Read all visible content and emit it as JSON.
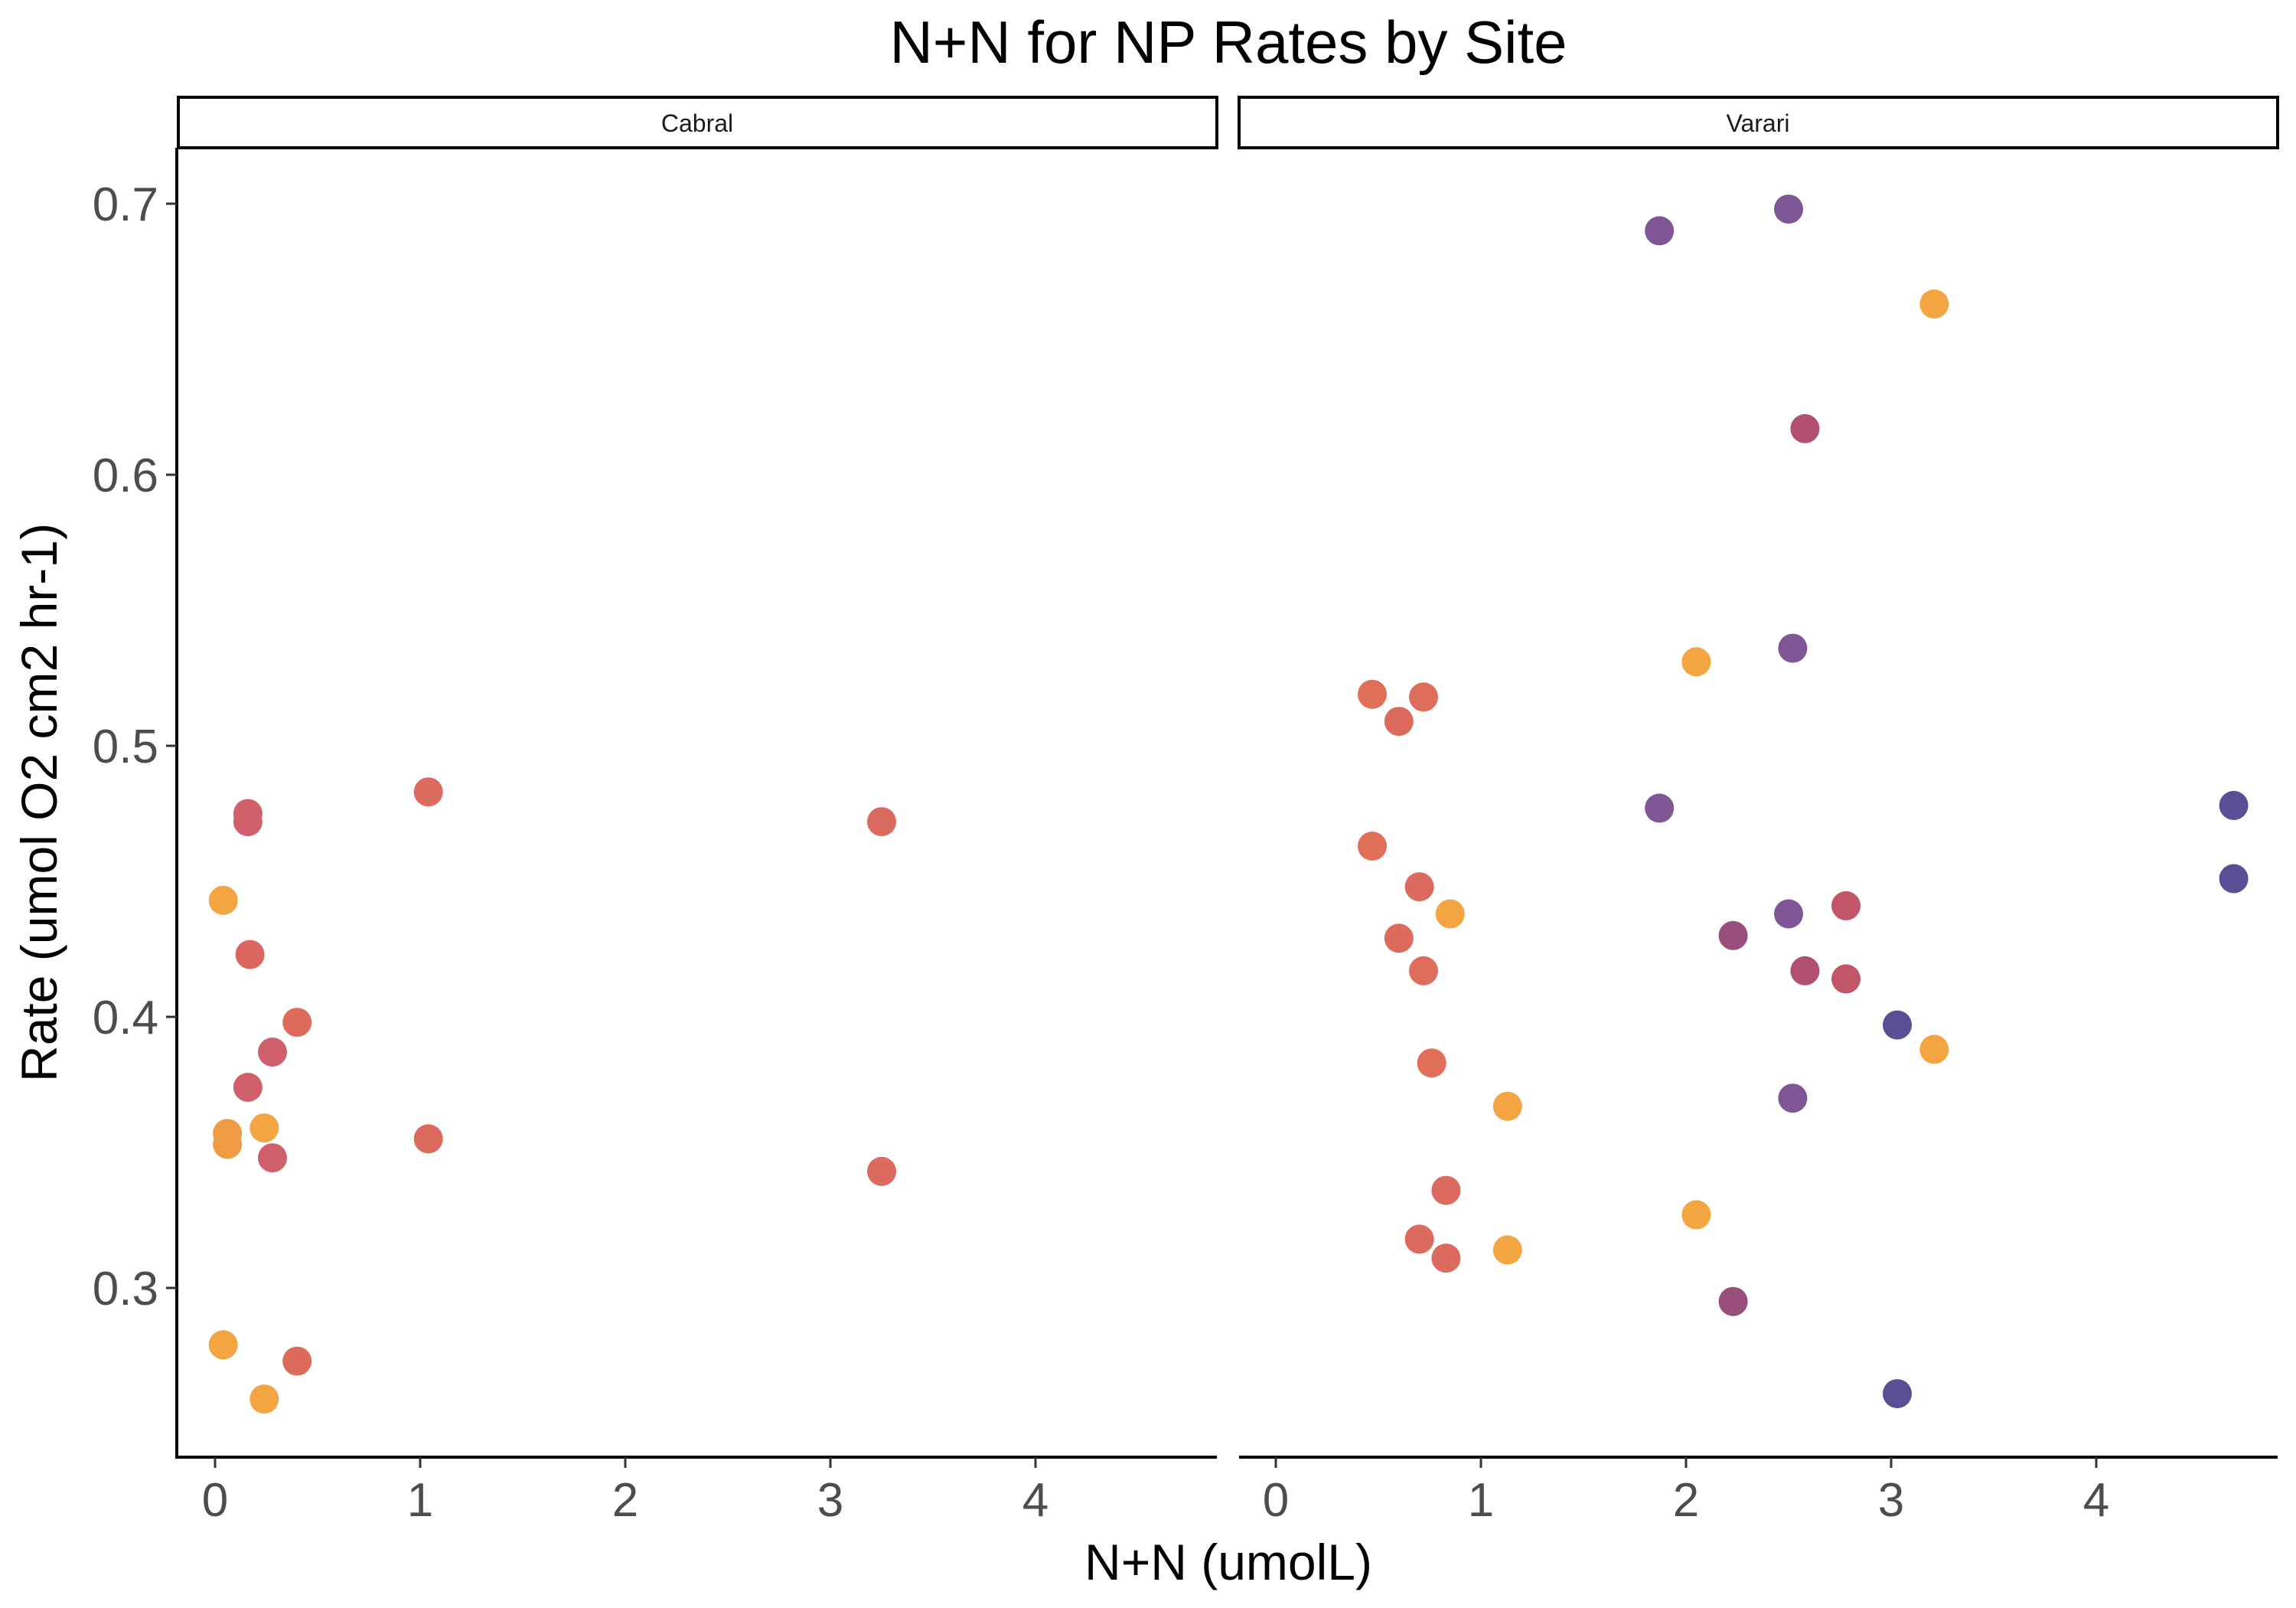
{
  "chart_data": {
    "type": "scatter",
    "title": "N+N for NP Rates by Site",
    "xlabel": "N+N (umolL)",
    "ylabel": "Rate (umol O2 cm2 hr-1)",
    "xlim": [
      -0.2,
      4.85
    ],
    "ylim": [
      0.237,
      0.722
    ],
    "x_ticks": [
      0,
      1,
      2,
      3,
      4
    ],
    "x_tick_labels": [
      "0",
      "1",
      "2",
      "3",
      "4"
    ],
    "y_ticks": [
      0.3,
      0.4,
      0.5,
      0.6,
      0.7
    ],
    "y_tick_labels": [
      "0.3",
      "0.4",
      "0.5",
      "0.6",
      "0.7"
    ],
    "grid": false,
    "legend": "none",
    "panels": [
      {
        "name": "Cabral",
        "points": [
          {
            "x": 0.04,
            "y": 0.443,
            "color": "#f2a541"
          },
          {
            "x": 0.04,
            "y": 0.279,
            "color": "#f2a541"
          },
          {
            "x": 0.06,
            "y": 0.357,
            "color": "#ef9a45"
          },
          {
            "x": 0.06,
            "y": 0.353,
            "color": "#ef9a45"
          },
          {
            "x": 0.16,
            "y": 0.475,
            "color": "#d2606a"
          },
          {
            "x": 0.16,
            "y": 0.472,
            "color": "#d2606a"
          },
          {
            "x": 0.17,
            "y": 0.423,
            "color": "#d96760"
          },
          {
            "x": 0.16,
            "y": 0.374,
            "color": "#d05f6b"
          },
          {
            "x": 0.24,
            "y": 0.359,
            "color": "#f2a541"
          },
          {
            "x": 0.24,
            "y": 0.259,
            "color": "#f2a541"
          },
          {
            "x": 0.28,
            "y": 0.387,
            "color": "#cf5f6b"
          },
          {
            "x": 0.28,
            "y": 0.348,
            "color": "#cf5f6b"
          },
          {
            "x": 0.4,
            "y": 0.398,
            "color": "#dc6b5c"
          },
          {
            "x": 0.4,
            "y": 0.273,
            "color": "#dc6b5c"
          },
          {
            "x": 1.04,
            "y": 0.483,
            "color": "#db6a5f"
          },
          {
            "x": 1.04,
            "y": 0.355,
            "color": "#db6a5f"
          },
          {
            "x": 3.25,
            "y": 0.472,
            "color": "#db6a5f"
          },
          {
            "x": 3.25,
            "y": 0.343,
            "color": "#db6a5f"
          }
        ]
      },
      {
        "name": "Varari",
        "points": [
          {
            "x": 0.47,
            "y": 0.519,
            "color": "#e16f57"
          },
          {
            "x": 0.47,
            "y": 0.463,
            "color": "#e16f57"
          },
          {
            "x": 0.6,
            "y": 0.509,
            "color": "#dc6b5c"
          },
          {
            "x": 0.6,
            "y": 0.429,
            "color": "#dc6b5c"
          },
          {
            "x": 0.7,
            "y": 0.448,
            "color": "#db6a5f"
          },
          {
            "x": 0.7,
            "y": 0.318,
            "color": "#db6a5f"
          },
          {
            "x": 0.72,
            "y": 0.518,
            "color": "#de6d5b"
          },
          {
            "x": 0.72,
            "y": 0.417,
            "color": "#de6d5b"
          },
          {
            "x": 0.76,
            "y": 0.383,
            "color": "#e16f57"
          },
          {
            "x": 0.83,
            "y": 0.336,
            "color": "#db6a5f"
          },
          {
            "x": 0.83,
            "y": 0.311,
            "color": "#db6a5f"
          },
          {
            "x": 0.85,
            "y": 0.438,
            "color": "#f2a541"
          },
          {
            "x": 1.13,
            "y": 0.367,
            "color": "#f2a541"
          },
          {
            "x": 1.13,
            "y": 0.314,
            "color": "#f2a541"
          },
          {
            "x": 1.87,
            "y": 0.69,
            "color": "#7e5595"
          },
          {
            "x": 1.87,
            "y": 0.477,
            "color": "#7e5595"
          },
          {
            "x": 2.05,
            "y": 0.531,
            "color": "#f2a541"
          },
          {
            "x": 2.05,
            "y": 0.327,
            "color": "#f2a541"
          },
          {
            "x": 2.23,
            "y": 0.43,
            "color": "#984f7b"
          },
          {
            "x": 2.23,
            "y": 0.295,
            "color": "#984f7b"
          },
          {
            "x": 2.5,
            "y": 0.698,
            "color": "#7e5595"
          },
          {
            "x": 2.5,
            "y": 0.438,
            "color": "#7e5595"
          },
          {
            "x": 2.52,
            "y": 0.536,
            "color": "#7e5595"
          },
          {
            "x": 2.52,
            "y": 0.37,
            "color": "#7e5595"
          },
          {
            "x": 2.58,
            "y": 0.617,
            "color": "#b2506f"
          },
          {
            "x": 2.58,
            "y": 0.417,
            "color": "#b2506f"
          },
          {
            "x": 2.78,
            "y": 0.441,
            "color": "#c05667"
          },
          {
            "x": 2.78,
            "y": 0.414,
            "color": "#c05667"
          },
          {
            "x": 3.03,
            "y": 0.397,
            "color": "#5b4e95"
          },
          {
            "x": 3.03,
            "y": 0.261,
            "color": "#5b4e95"
          },
          {
            "x": 3.21,
            "y": 0.663,
            "color": "#f2a541"
          },
          {
            "x": 3.21,
            "y": 0.388,
            "color": "#f2a541"
          },
          {
            "x": 4.67,
            "y": 0.478,
            "color": "#5b4e95"
          },
          {
            "x": 4.67,
            "y": 0.451,
            "color": "#5b4e95"
          }
        ]
      }
    ]
  }
}
